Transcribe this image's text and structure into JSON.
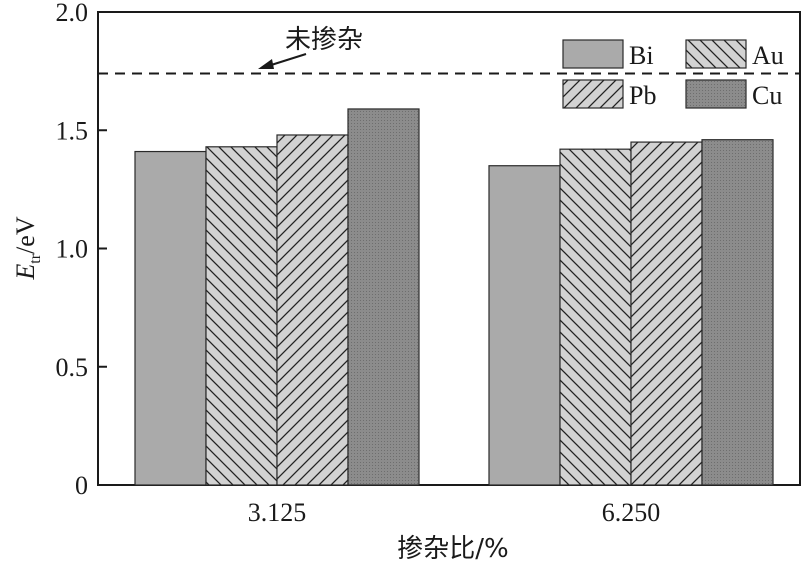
{
  "chart_data": {
    "type": "bar",
    "categories": [
      "3.125",
      "6.250"
    ],
    "series": [
      {
        "name": "Bi",
        "values": [
          1.41,
          1.35
        ],
        "fill": "#aaaaaa",
        "pattern": "solid-light"
      },
      {
        "name": "Au",
        "values": [
          1.43,
          1.42
        ],
        "fill": "#cfcfcf",
        "pattern": "hatch-backslash"
      },
      {
        "name": "Pb",
        "values": [
          1.48,
          1.45
        ],
        "fill": "#cfcfcf",
        "pattern": "hatch-slash"
      },
      {
        "name": "Cu",
        "values": [
          1.59,
          1.46
        ],
        "fill": "#8a8a8a",
        "pattern": "solid-dark"
      }
    ],
    "reference_line": {
      "value": 1.74,
      "label": "未掺杂"
    },
    "xlabel": "掺杂比/%",
    "ylabel": {
      "symbol": "E",
      "subscript": "tr",
      "unit": "/eV"
    },
    "ylim": [
      0,
      2.0
    ],
    "yticks": [
      "0",
      "0.5",
      "1.0",
      "1.5",
      "2.0"
    ],
    "grid": false,
    "legend_position": "top-right"
  }
}
